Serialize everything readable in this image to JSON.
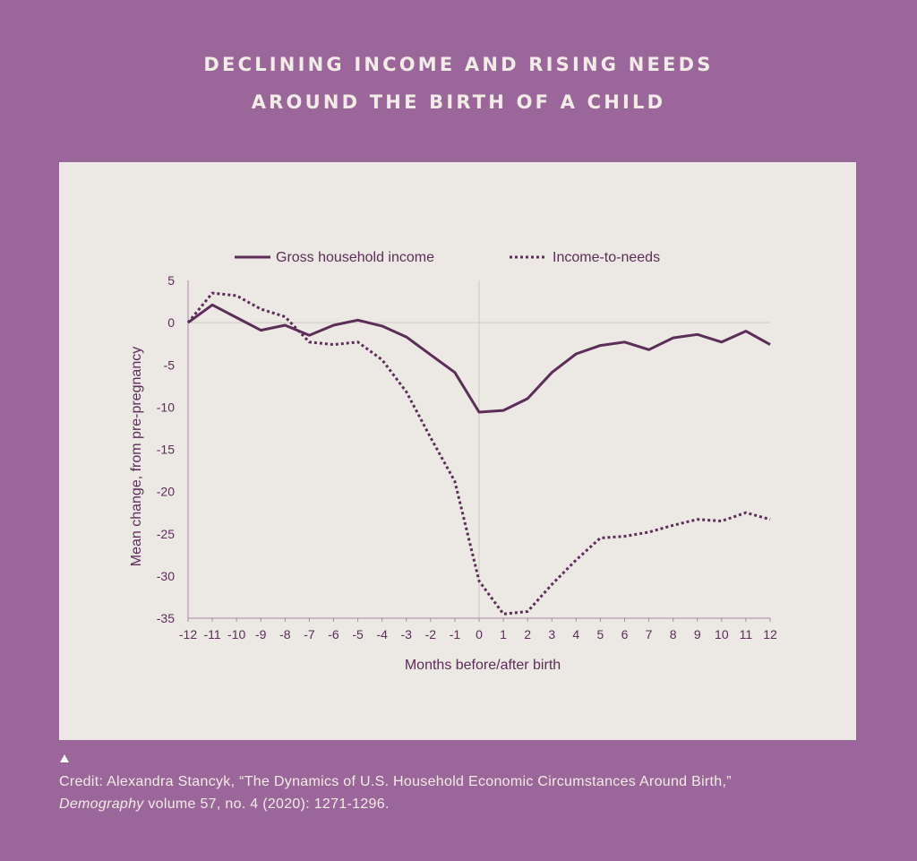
{
  "header": {
    "title_line1": "DECLINING INCOME AND RISING NEEDS",
    "title_line2": "AROUND THE BIRTH OF A CHILD"
  },
  "footer": {
    "credit_line1": "Credit: Alexandra Stancyk, “The Dynamics of U.S. Household Economic Circumstances Around Birth,”",
    "credit_journal": "Demography",
    "credit_rest": " volume 57, no. 4 (2020): 1271-1296."
  },
  "colors": {
    "background": "#9b6699",
    "panel": "#ece8e3",
    "series": "#5c2d59",
    "text": "#5c2d59"
  },
  "chart_data": {
    "type": "line",
    "title": "DECLINING INCOME AND RISING NEEDS AROUND THE BIRTH OF A CHILD",
    "xlabel": "Months before/after birth",
    "ylabel": "Mean change, from pre-pregnancy",
    "x": [
      -12,
      -11,
      -10,
      -9,
      -8,
      -7,
      -6,
      -5,
      -4,
      -3,
      -2,
      -1,
      0,
      1,
      2,
      3,
      4,
      5,
      6,
      7,
      8,
      9,
      10,
      11,
      12
    ],
    "xlim": [
      -12,
      12
    ],
    "ylim": [
      -35,
      5
    ],
    "yticks": [
      5,
      0,
      -5,
      -10,
      -15,
      -20,
      -25,
      -30,
      -35
    ],
    "series": [
      {
        "name": "Gross household income",
        "style": "solid",
        "values": [
          0,
          2.1,
          0.6,
          -0.9,
          -0.3,
          -1.5,
          -0.3,
          0.3,
          -0.4,
          -1.7,
          -3.8,
          -5.9,
          -10.6,
          -10.4,
          -9.0,
          -5.9,
          -3.7,
          -2.7,
          -2.3,
          -3.2,
          -1.8,
          -1.4,
          -2.3,
          -1.0,
          -2.6
        ]
      },
      {
        "name": "Income-to-needs",
        "style": "dotted",
        "values": [
          0,
          3.5,
          3.2,
          1.6,
          0.7,
          -2.3,
          -2.6,
          -2.3,
          -4.4,
          -8.2,
          -13.6,
          -18.8,
          -30.6,
          -34.5,
          -34.2,
          -31.0,
          -28.1,
          -25.5,
          -25.3,
          -24.8,
          -24.0,
          -23.3,
          -23.5,
          -22.5,
          -23.3
        ]
      }
    ],
    "legend_position": "top"
  }
}
